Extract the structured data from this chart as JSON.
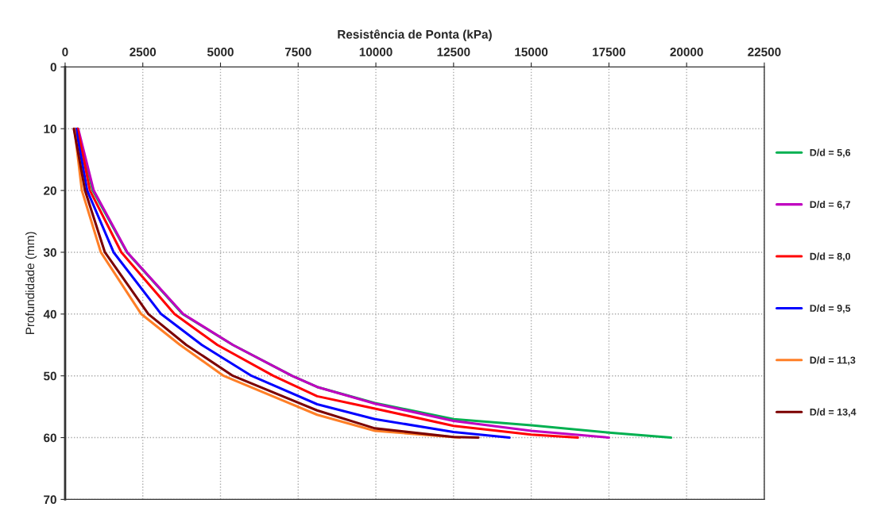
{
  "chart_data": {
    "type": "line",
    "xlabel": "Resistência de Ponta (kPa)",
    "ylabel": "Profundidade (mm)",
    "xlim": [
      0,
      22500
    ],
    "xticks": [
      0,
      2500,
      5000,
      7500,
      10000,
      12500,
      15000,
      17500,
      20000,
      22500
    ],
    "ylim": [
      70,
      0
    ],
    "yticks": [
      0,
      10,
      20,
      30,
      40,
      50,
      60,
      70
    ],
    "grid": true,
    "legend": "right",
    "marker": "none",
    "line_style": "solid",
    "series": [
      {
        "name": "D/d = 5,6",
        "color": "#00b050",
        "x": [
          400,
          890,
          1990,
          3780,
          5400,
          7300,
          8110,
          9970,
          12500,
          15000,
          17500,
          19500
        ],
        "values": [
          10,
          20,
          30,
          40,
          45,
          50,
          51.8,
          54.4,
          57,
          58,
          59.2,
          60
        ]
      },
      {
        "name": "D/d = 6,7",
        "color": "#c000c0",
        "x": [
          420,
          920,
          2000,
          3800,
          5400,
          7300,
          8110,
          9970,
          12500,
          15000,
          17500
        ],
        "values": [
          10,
          20,
          30,
          40,
          45,
          50,
          51.8,
          54.5,
          57.3,
          58.9,
          60
        ]
      },
      {
        "name": "D/d = 8,0",
        "color": "#ff0000",
        "x": [
          400,
          800,
          1810,
          3520,
          4900,
          6700,
          8110,
          9970,
          12500,
          15000,
          16500
        ],
        "values": [
          10,
          20,
          30,
          40,
          45,
          50,
          53.3,
          55.3,
          58.1,
          59.5,
          60
        ]
      },
      {
        "name": "D/d = 9,5",
        "color": "#0000ff",
        "x": [
          350,
          710,
          1560,
          3090,
          4400,
          6000,
          8110,
          9970,
          12500,
          14300
        ],
        "values": [
          10,
          20,
          30,
          40,
          45,
          50,
          54.6,
          57,
          59.1,
          60
        ]
      },
      {
        "name": "D/d = 11,3",
        "color": "#ff7f27",
        "x": [
          300,
          540,
          1150,
          2450,
          3700,
          5100,
          8110,
          9970,
          12700
        ],
        "values": [
          10,
          20,
          30,
          40,
          45,
          50,
          56.3,
          58.9,
          60
        ]
      },
      {
        "name": "D/d = 13,4",
        "color": "#7b0000",
        "x": [
          280,
          640,
          1280,
          2680,
          3900,
          5400,
          8110,
          9970,
          12500,
          13300
        ],
        "values": [
          10,
          20,
          30,
          40,
          45,
          50,
          55.6,
          58.5,
          59.9,
          60
        ]
      }
    ]
  }
}
